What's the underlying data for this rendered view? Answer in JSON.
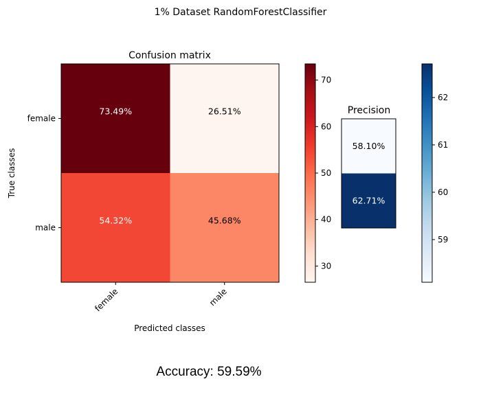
{
  "figure": {
    "suptitle": "1% Dataset RandomForestClassifier",
    "accuracy_label": "Accuracy: 59.59%"
  },
  "chart_data": [
    {
      "type": "heatmap",
      "title": "Confusion matrix",
      "xlabel": "Predicted classes",
      "ylabel": "True classes",
      "x_categories": [
        "female",
        "male"
      ],
      "y_categories": [
        "female",
        "male"
      ],
      "values": [
        [
          73.49,
          26.51
        ],
        [
          54.32,
          45.68
        ]
      ],
      "cell_labels": [
        [
          "73.49%",
          "26.51%"
        ],
        [
          "54.32%",
          "45.68%"
        ]
      ],
      "colormap": "Reds",
      "colorbar": {
        "range": [
          26.51,
          73.49
        ],
        "ticks": [
          30,
          40,
          50,
          60,
          70
        ]
      }
    },
    {
      "type": "heatmap",
      "title": "Precision",
      "values": [
        [
          58.1
        ],
        [
          62.71
        ]
      ],
      "cell_labels": [
        "58.10%",
        "62.71%"
      ],
      "colormap": "Blues",
      "colorbar": {
        "range": [
          58.1,
          62.71
        ],
        "ticks": [
          59,
          60,
          61,
          62
        ]
      }
    }
  ]
}
